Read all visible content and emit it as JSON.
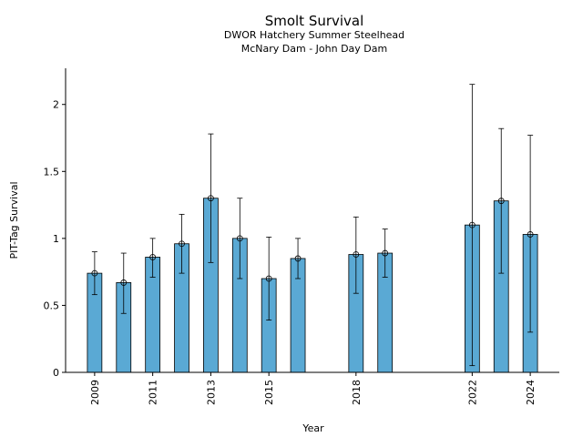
{
  "chart_data": {
    "type": "bar",
    "title": "Smolt Survival",
    "subtitle": [
      "DWOR Hatchery Summer Steelhead",
      "McNary Dam - John Day Dam"
    ],
    "xlabel": "Year",
    "ylabel": "PIT-Tag Survival",
    "ylim": [
      0,
      2.27
    ],
    "xlim": [
      2008.0,
      2025.0
    ],
    "yticks": [
      0,
      0.5,
      1,
      1.5,
      2
    ],
    "ytick_labels": [
      "0",
      "0.5",
      "1",
      "1.5",
      "2"
    ],
    "xticks": [
      2009,
      2011,
      2013,
      2015,
      2018,
      2022,
      2024
    ],
    "xtick_labels": [
      "2009",
      "2011",
      "2013",
      "2015",
      "2018",
      "2022",
      "2024"
    ],
    "grid": false,
    "bar_color": "#5aa9d4",
    "series": [
      {
        "values": [
          {
            "x": 2009,
            "y": 0.74,
            "lo": 0.58,
            "hi": 0.9
          },
          {
            "x": 2010,
            "y": 0.67,
            "lo": 0.44,
            "hi": 0.89
          },
          {
            "x": 2011,
            "y": 0.86,
            "lo": 0.71,
            "hi": 1.0
          },
          {
            "x": 2012,
            "y": 0.96,
            "lo": 0.74,
            "hi": 1.18
          },
          {
            "x": 2013,
            "y": 1.3,
            "lo": 0.82,
            "hi": 1.78
          },
          {
            "x": 2014,
            "y": 1.0,
            "lo": 0.7,
            "hi": 1.3
          },
          {
            "x": 2015,
            "y": 0.7,
            "lo": 0.39,
            "hi": 1.01
          },
          {
            "x": 2016,
            "y": 0.85,
            "lo": 0.7,
            "hi": 1.0
          },
          {
            "x": 2018,
            "y": 0.88,
            "lo": 0.59,
            "hi": 1.16
          },
          {
            "x": 2019,
            "y": 0.89,
            "lo": 0.71,
            "hi": 1.07
          },
          {
            "x": 2022,
            "y": 1.1,
            "lo": 0.05,
            "hi": 2.15
          },
          {
            "x": 2023,
            "y": 1.28,
            "lo": 0.74,
            "hi": 1.82
          },
          {
            "x": 2024,
            "y": 1.03,
            "lo": 0.3,
            "hi": 1.77
          }
        ]
      }
    ]
  }
}
